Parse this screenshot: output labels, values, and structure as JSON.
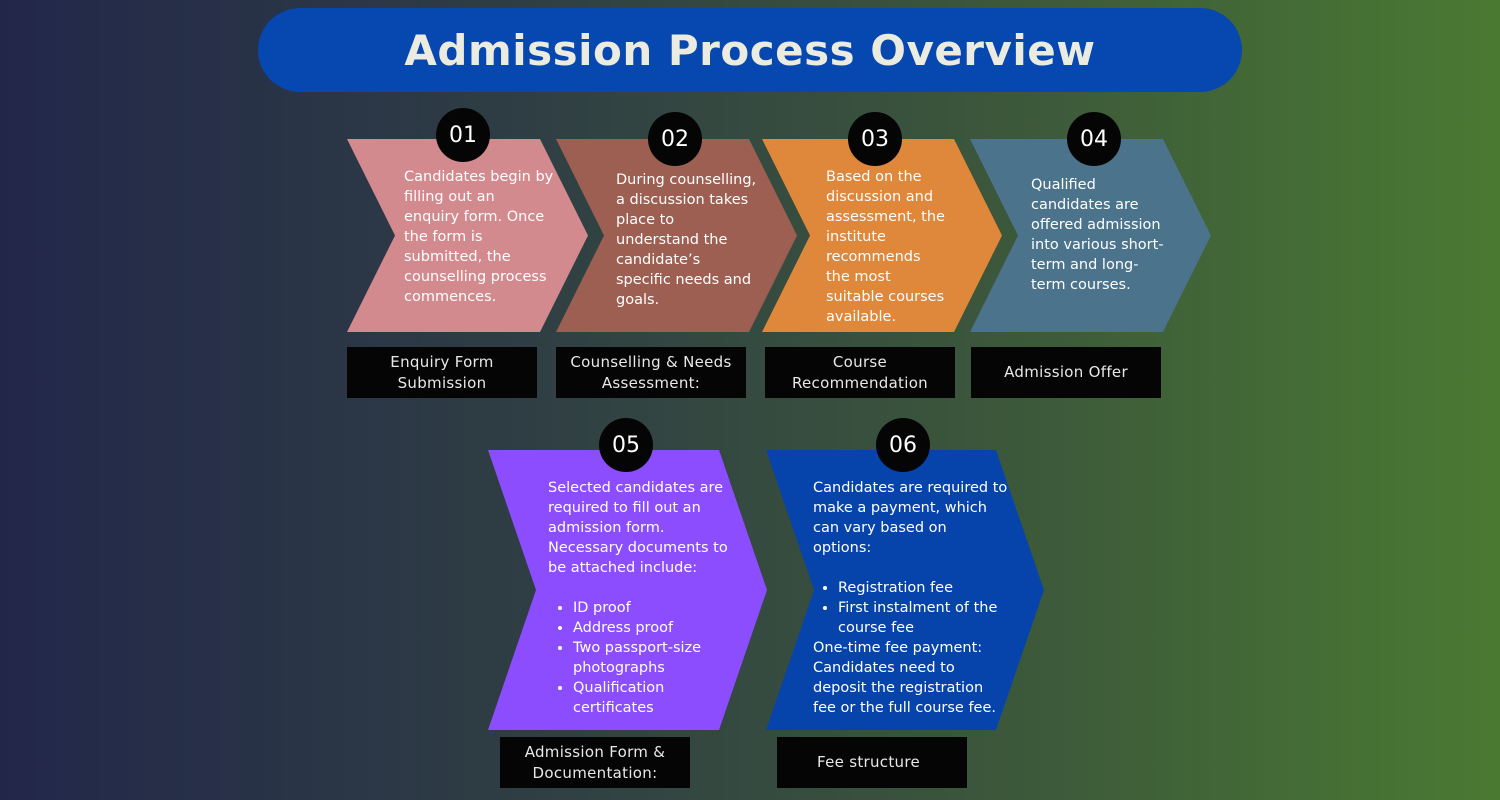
{
  "title": "Admission Process Overview",
  "colors": {
    "step1": "#d38a8e",
    "step2": "#9c5f52",
    "step3": "#df873a",
    "step4": "#4b738c",
    "step5": "#8c4dff",
    "step6": "#0644ac",
    "title_bg": "#0647b0"
  },
  "steps": [
    {
      "number": "01",
      "label": "Enquiry Form Submission",
      "text": "Candidates begin by filling out an enquiry form. Once the form is submitted, the counselling process commences."
    },
    {
      "number": "02",
      "label": "Counselling & Needs Assessment:",
      "text": "During counselling, a discussion takes place to understand the candidate’s specific needs and goals."
    },
    {
      "number": "03",
      "label": "Course Recommendation",
      "text": "Based on the discussion and assessment, the institute recommends the most suitable courses available."
    },
    {
      "number": "04",
      "label": "Admission Offer",
      "text": "Qualified candidates are offered admission into various short-term and long-term courses."
    },
    {
      "number": "05",
      "label": "Admission Form & Documentation:",
      "text": "Selected candidates are required to fill out an admission form. Necessary documents to be attached include:",
      "list": [
        "ID proof",
        "Address proof",
        "Two passport-size photographs",
        "Qualification certificates"
      ]
    },
    {
      "number": "06",
      "label": "Fee structure",
      "text": "Candidates are required to make a payment, which can vary based on options:",
      "list": [
        "Registration fee",
        "First instalment of the course fee"
      ],
      "after": "One-time fee payment: Candidates need to deposit the registration fee or the full course fee."
    }
  ]
}
